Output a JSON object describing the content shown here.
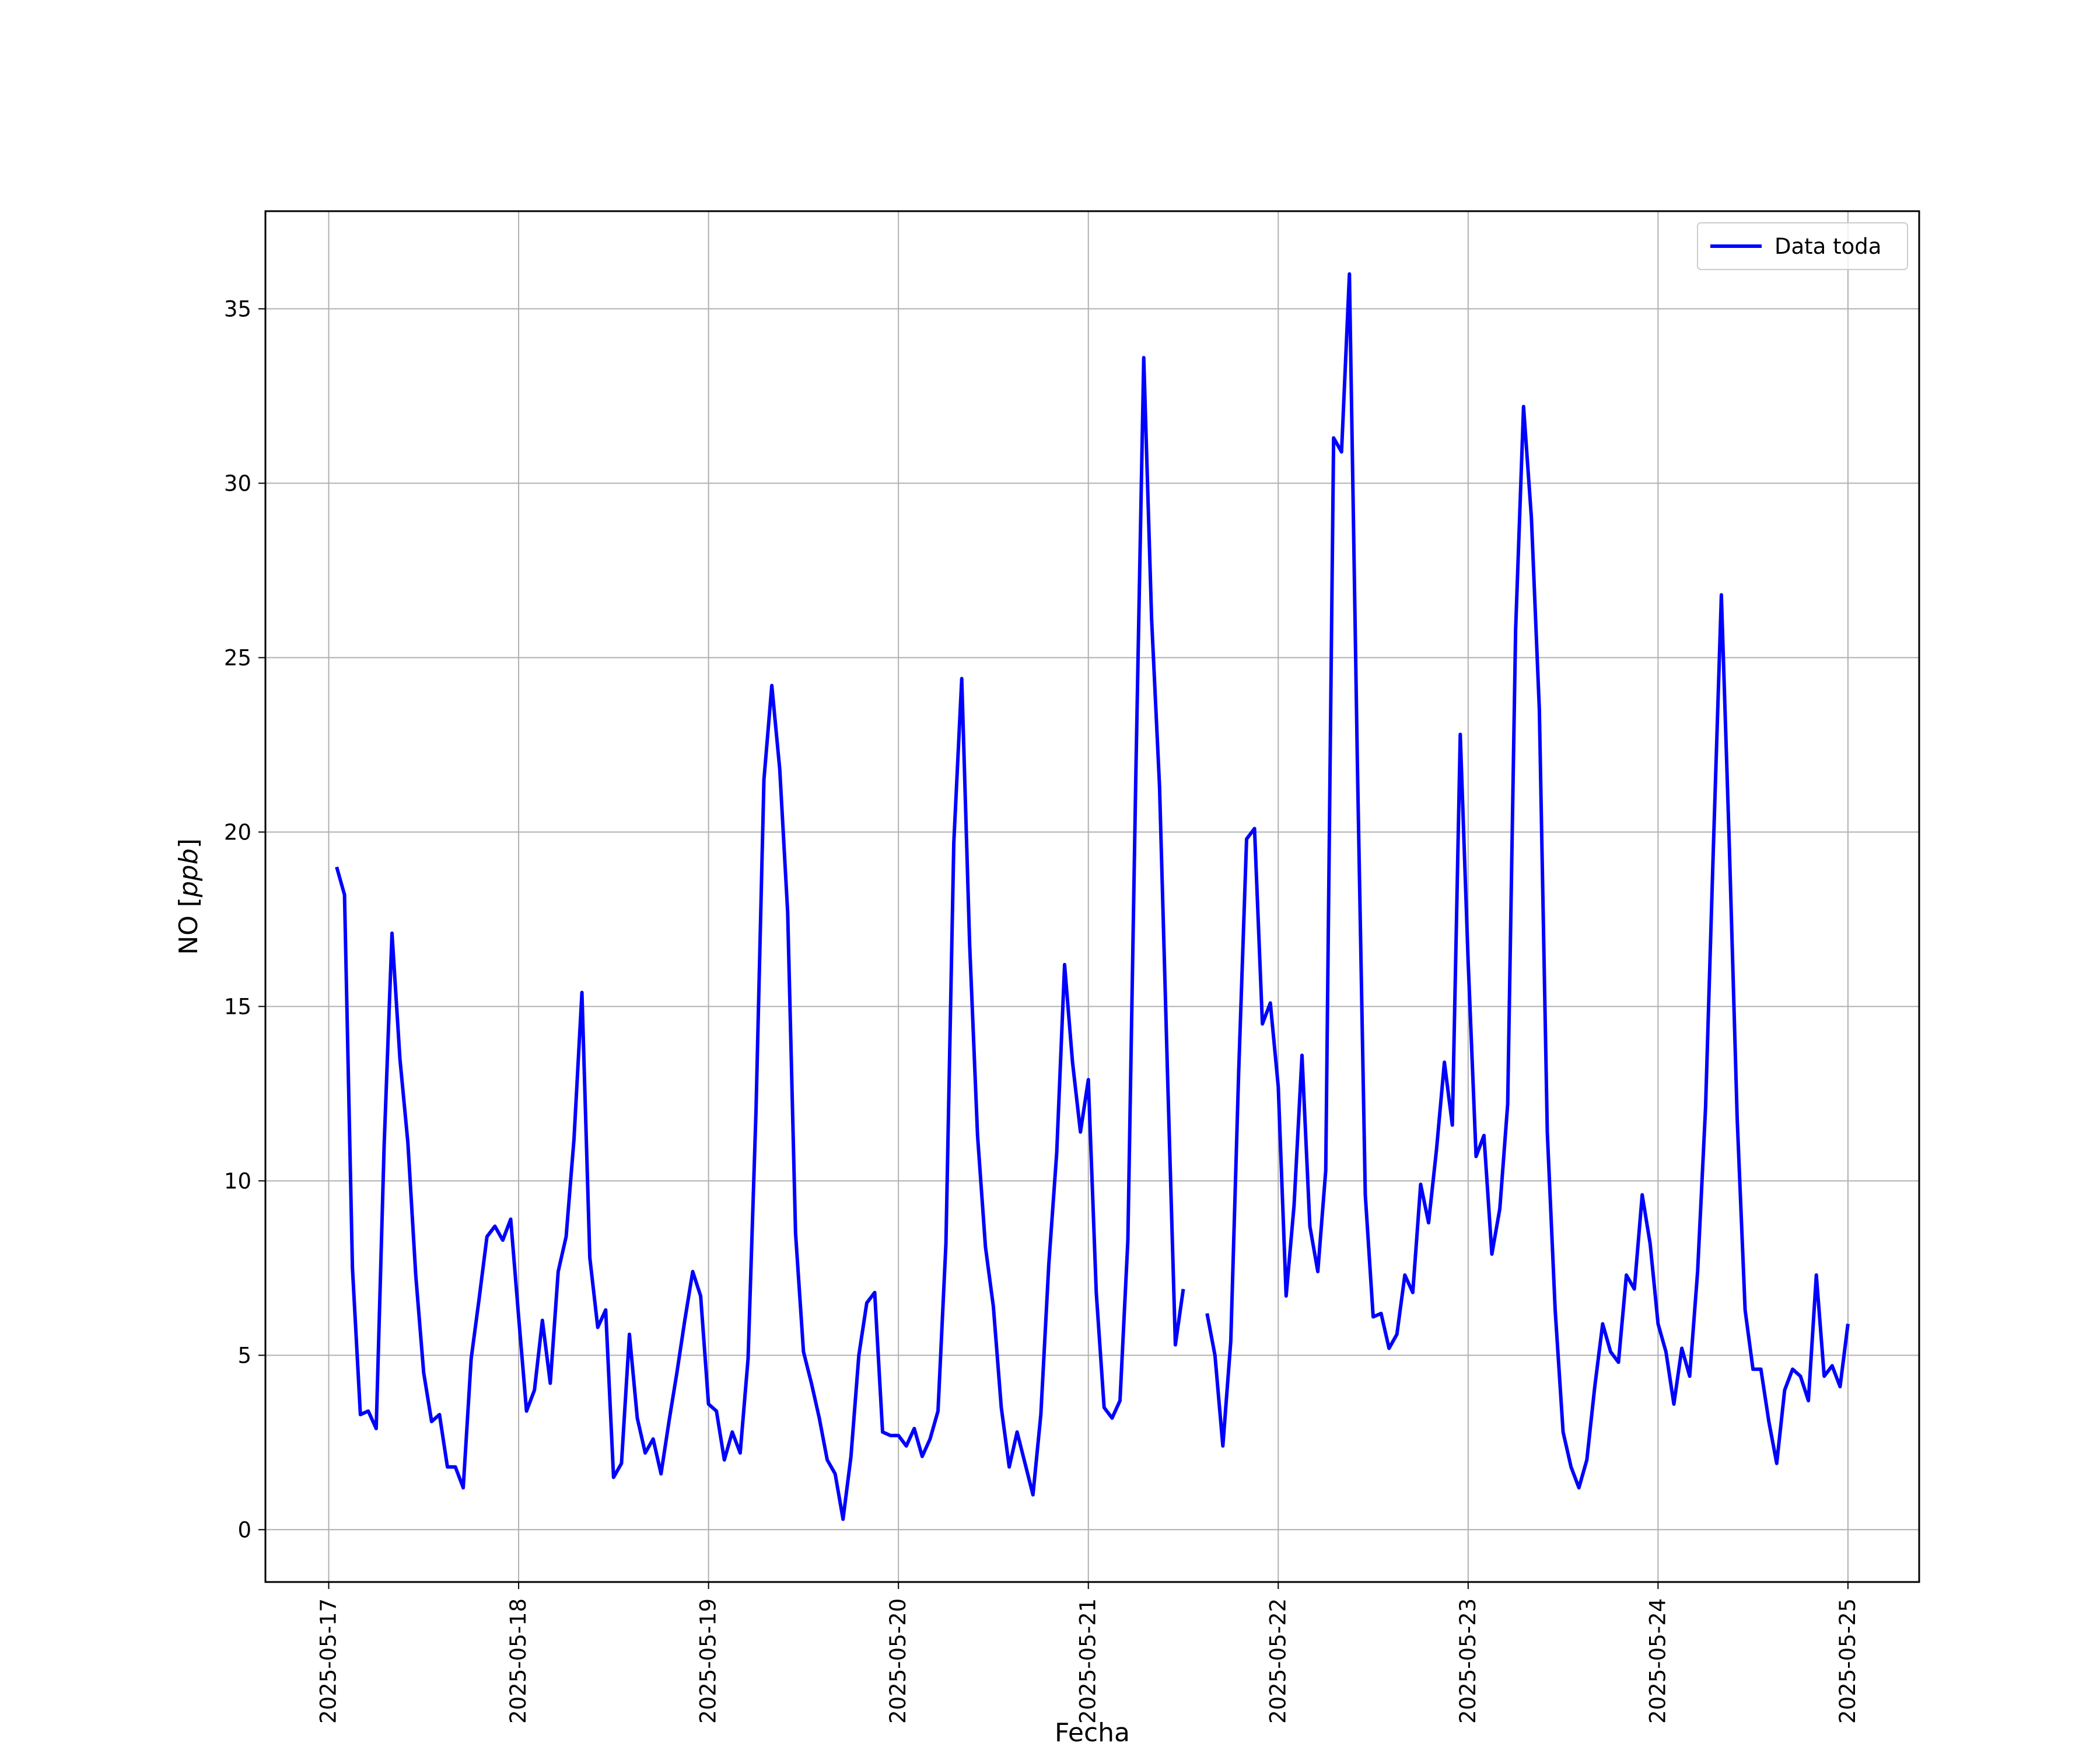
{
  "chart_data": {
    "type": "line",
    "title": "",
    "xlabel": "Fecha",
    "ylabel": "NO",
    "ylabel_unit": "ppb",
    "x_type": "date",
    "xlim": [
      "2025-05-16T16:00",
      "2025-05-25T09:00"
    ],
    "ylim": [
      -1.5,
      37.8
    ],
    "x_ticks": [
      "2025-05-17",
      "2025-05-18",
      "2025-05-19",
      "2025-05-20",
      "2025-05-21",
      "2025-05-22",
      "2025-05-23",
      "2025-05-24",
      "2025-05-25"
    ],
    "y_ticks": [
      0,
      5,
      10,
      15,
      20,
      25,
      30,
      35
    ],
    "grid": true,
    "legend": {
      "position": "top-right",
      "entries": [
        "Data toda"
      ]
    },
    "series": [
      {
        "name": "Data toda",
        "color": "#0000ff",
        "points": [
          [
            "2025-05-17T01:00",
            19.0
          ],
          [
            "2025-05-17T02:00",
            18.2
          ],
          [
            "2025-05-17T03:00",
            7.5
          ],
          [
            "2025-05-17T04:00",
            3.3
          ],
          [
            "2025-05-17T05:00",
            3.4
          ],
          [
            "2025-05-17T06:00",
            2.9
          ],
          [
            "2025-05-17T07:00",
            11.0
          ],
          [
            "2025-05-17T08:00",
            17.1
          ],
          [
            "2025-05-17T09:00",
            13.5
          ],
          [
            "2025-05-17T10:00",
            11.1
          ],
          [
            "2025-05-17T11:00",
            7.3
          ],
          [
            "2025-05-17T12:00",
            4.5
          ],
          [
            "2025-05-17T13:00",
            3.1
          ],
          [
            "2025-05-17T14:00",
            3.3
          ],
          [
            "2025-05-17T15:00",
            1.8
          ],
          [
            "2025-05-17T16:00",
            1.8
          ],
          [
            "2025-05-17T17:00",
            1.2
          ],
          [
            "2025-05-17T18:00",
            4.9
          ],
          [
            "2025-05-17T19:00",
            6.6
          ],
          [
            "2025-05-17T20:00",
            8.4
          ],
          [
            "2025-05-17T21:00",
            8.7
          ],
          [
            "2025-05-17T22:00",
            8.3
          ],
          [
            "2025-05-17T23:00",
            8.9
          ],
          [
            "2025-05-18T00:00",
            6.1
          ],
          [
            "2025-05-18T01:00",
            3.4
          ],
          [
            "2025-05-18T02:00",
            4.0
          ],
          [
            "2025-05-18T03:00",
            6.0
          ],
          [
            "2025-05-18T04:00",
            4.2
          ],
          [
            "2025-05-18T05:00",
            7.4
          ],
          [
            "2025-05-18T06:00",
            8.4
          ],
          [
            "2025-05-18T07:00",
            11.2
          ],
          [
            "2025-05-18T08:00",
            15.4
          ],
          [
            "2025-05-18T09:00",
            7.8
          ],
          [
            "2025-05-18T10:00",
            5.8
          ],
          [
            "2025-05-18T11:00",
            6.3
          ],
          [
            "2025-05-18T12:00",
            1.5
          ],
          [
            "2025-05-18T13:00",
            1.9
          ],
          [
            "2025-05-18T14:00",
            5.6
          ],
          [
            "2025-05-18T15:00",
            3.2
          ],
          [
            "2025-05-18T16:00",
            2.2
          ],
          [
            "2025-05-18T17:00",
            2.6
          ],
          [
            "2025-05-18T18:00",
            1.6
          ],
          [
            "2025-05-18T19:00",
            3.1
          ],
          [
            "2025-05-18T20:00",
            4.5
          ],
          [
            "2025-05-18T21:00",
            6.0
          ],
          [
            "2025-05-18T22:00",
            7.4
          ],
          [
            "2025-05-18T23:00",
            6.7
          ],
          [
            "2025-05-19T00:00",
            3.6
          ],
          [
            "2025-05-19T01:00",
            3.4
          ],
          [
            "2025-05-19T02:00",
            2.0
          ],
          [
            "2025-05-19T03:00",
            2.8
          ],
          [
            "2025-05-19T04:00",
            2.2
          ],
          [
            "2025-05-19T05:00",
            4.9
          ],
          [
            "2025-05-19T06:00",
            12.0
          ],
          [
            "2025-05-19T07:00",
            21.5
          ],
          [
            "2025-05-19T08:00",
            24.2
          ],
          [
            "2025-05-19T09:00",
            21.8
          ],
          [
            "2025-05-19T10:00",
            17.7
          ],
          [
            "2025-05-19T11:00",
            8.5
          ],
          [
            "2025-05-19T12:00",
            5.1
          ],
          [
            "2025-05-19T13:00",
            4.2
          ],
          [
            "2025-05-19T14:00",
            3.2
          ],
          [
            "2025-05-19T15:00",
            2.0
          ],
          [
            "2025-05-19T16:00",
            1.6
          ],
          [
            "2025-05-19T17:00",
            0.3
          ],
          [
            "2025-05-19T18:00",
            2.1
          ],
          [
            "2025-05-19T19:00",
            5.0
          ],
          [
            "2025-05-19T20:00",
            6.5
          ],
          [
            "2025-05-19T21:00",
            6.8
          ],
          [
            "2025-05-19T22:00",
            2.8
          ],
          [
            "2025-05-19T23:00",
            2.7
          ],
          [
            "2025-05-20T00:00",
            2.7
          ],
          [
            "2025-05-20T01:00",
            2.4
          ],
          [
            "2025-05-20T02:00",
            2.9
          ],
          [
            "2025-05-20T03:00",
            2.1
          ],
          [
            "2025-05-20T04:00",
            2.6
          ],
          [
            "2025-05-20T05:00",
            3.4
          ],
          [
            "2025-05-20T06:00",
            8.2
          ],
          [
            "2025-05-20T07:00",
            19.7
          ],
          [
            "2025-05-20T08:00",
            24.4
          ],
          [
            "2025-05-20T09:00",
            16.8
          ],
          [
            "2025-05-20T10:00",
            11.3
          ],
          [
            "2025-05-20T11:00",
            8.1
          ],
          [
            "2025-05-20T12:00",
            6.4
          ],
          [
            "2025-05-20T13:00",
            3.5
          ],
          [
            "2025-05-20T14:00",
            1.8
          ],
          [
            "2025-05-20T15:00",
            2.8
          ],
          [
            "2025-05-20T16:00",
            1.9
          ],
          [
            "2025-05-20T17:00",
            1.0
          ],
          [
            "2025-05-20T18:00",
            3.3
          ],
          [
            "2025-05-20T19:00",
            7.6
          ],
          [
            "2025-05-20T20:00",
            10.8
          ],
          [
            "2025-05-20T21:00",
            16.2
          ],
          [
            "2025-05-20T22:00",
            13.4
          ],
          [
            "2025-05-20T23:00",
            11.4
          ],
          [
            "2025-05-21T00:00",
            12.9
          ],
          [
            "2025-05-21T01:00",
            6.8
          ],
          [
            "2025-05-21T02:00",
            3.5
          ],
          [
            "2025-05-21T03:00",
            3.2
          ],
          [
            "2025-05-21T04:00",
            3.7
          ],
          [
            "2025-05-21T05:00",
            8.3
          ],
          [
            "2025-05-21T06:00",
            21.6
          ],
          [
            "2025-05-21T07:00",
            33.6
          ],
          [
            "2025-05-21T08:00",
            26.1
          ],
          [
            "2025-05-21T09:00",
            21.3
          ],
          [
            "2025-05-21T10:00",
            13.1
          ],
          [
            "2025-05-21T11:00",
            5.3
          ],
          [
            "2025-05-21T12:00",
            6.9
          ],
          [
            "2025-05-21T13:00",
            null
          ],
          [
            "2025-05-21T14:00",
            null
          ],
          [
            "2025-05-21T15:00",
            6.2
          ],
          [
            "2025-05-21T16:00",
            5.0
          ],
          [
            "2025-05-21T17:00",
            2.4
          ],
          [
            "2025-05-21T18:00",
            5.4
          ],
          [
            "2025-05-21T19:00",
            13.1
          ],
          [
            "2025-05-21T20:00",
            19.8
          ],
          [
            "2025-05-21T21:00",
            20.1
          ],
          [
            "2025-05-21T22:00",
            14.5
          ],
          [
            "2025-05-21T23:00",
            15.1
          ],
          [
            "2025-05-22T00:00",
            12.7
          ],
          [
            "2025-05-22T01:00",
            6.7
          ],
          [
            "2025-05-22T02:00",
            9.3
          ],
          [
            "2025-05-22T03:00",
            13.6
          ],
          [
            "2025-05-22T04:00",
            8.7
          ],
          [
            "2025-05-22T05:00",
            7.4
          ],
          [
            "2025-05-22T06:00",
            10.3
          ],
          [
            "2025-05-22T07:00",
            31.3
          ],
          [
            "2025-05-22T08:00",
            30.9
          ],
          [
            "2025-05-22T09:00",
            36.0
          ],
          [
            "2025-05-22T10:00",
            22.0
          ],
          [
            "2025-05-22T11:00",
            9.6
          ],
          [
            "2025-05-22T12:00",
            6.1
          ],
          [
            "2025-05-22T13:00",
            6.2
          ],
          [
            "2025-05-22T14:00",
            5.2
          ],
          [
            "2025-05-22T15:00",
            5.6
          ],
          [
            "2025-05-22T16:00",
            7.3
          ],
          [
            "2025-05-22T17:00",
            6.8
          ],
          [
            "2025-05-22T18:00",
            9.9
          ],
          [
            "2025-05-22T19:00",
            8.8
          ],
          [
            "2025-05-22T20:00",
            10.9
          ],
          [
            "2025-05-22T21:00",
            13.4
          ],
          [
            "2025-05-22T22:00",
            11.6
          ],
          [
            "2025-05-22T23:00",
            22.8
          ],
          [
            "2025-05-23T00:00",
            16.3
          ],
          [
            "2025-05-23T01:00",
            10.7
          ],
          [
            "2025-05-23T02:00",
            11.3
          ],
          [
            "2025-05-23T03:00",
            7.9
          ],
          [
            "2025-05-23T04:00",
            9.2
          ],
          [
            "2025-05-23T05:00",
            12.2
          ],
          [
            "2025-05-23T06:00",
            25.8
          ],
          [
            "2025-05-23T07:00",
            32.2
          ],
          [
            "2025-05-23T08:00",
            29.0
          ],
          [
            "2025-05-23T09:00",
            23.5
          ],
          [
            "2025-05-23T10:00",
            11.4
          ],
          [
            "2025-05-23T11:00",
            6.3
          ],
          [
            "2025-05-23T12:00",
            2.8
          ],
          [
            "2025-05-23T13:00",
            1.8
          ],
          [
            "2025-05-23T14:00",
            1.2
          ],
          [
            "2025-05-23T15:00",
            2.0
          ],
          [
            "2025-05-23T16:00",
            4.1
          ],
          [
            "2025-05-23T17:00",
            5.9
          ],
          [
            "2025-05-23T18:00",
            5.1
          ],
          [
            "2025-05-23T19:00",
            4.8
          ],
          [
            "2025-05-23T20:00",
            7.3
          ],
          [
            "2025-05-23T21:00",
            6.9
          ],
          [
            "2025-05-23T22:00",
            9.6
          ],
          [
            "2025-05-23T23:00",
            8.2
          ],
          [
            "2025-05-24T00:00",
            5.9
          ],
          [
            "2025-05-24T01:00",
            5.1
          ],
          [
            "2025-05-24T02:00",
            3.6
          ],
          [
            "2025-05-24T03:00",
            5.2
          ],
          [
            "2025-05-24T04:00",
            4.4
          ],
          [
            "2025-05-24T05:00",
            7.4
          ],
          [
            "2025-05-24T06:00",
            12.1
          ],
          [
            "2025-05-24T07:00",
            19.6
          ],
          [
            "2025-05-24T08:00",
            26.8
          ],
          [
            "2025-05-24T09:00",
            19.7
          ],
          [
            "2025-05-24T10:00",
            11.8
          ],
          [
            "2025-05-24T11:00",
            6.3
          ],
          [
            "2025-05-24T12:00",
            4.6
          ],
          [
            "2025-05-24T13:00",
            4.6
          ],
          [
            "2025-05-24T14:00",
            3.1
          ],
          [
            "2025-05-24T15:00",
            1.9
          ],
          [
            "2025-05-24T16:00",
            4.0
          ],
          [
            "2025-05-24T17:00",
            4.6
          ],
          [
            "2025-05-24T18:00",
            4.4
          ],
          [
            "2025-05-24T19:00",
            3.7
          ],
          [
            "2025-05-24T20:00",
            7.3
          ],
          [
            "2025-05-24T21:00",
            4.4
          ],
          [
            "2025-05-24T22:00",
            4.7
          ],
          [
            "2025-05-24T23:00",
            4.1
          ],
          [
            "2025-05-25T00:00",
            5.9
          ]
        ]
      }
    ]
  }
}
